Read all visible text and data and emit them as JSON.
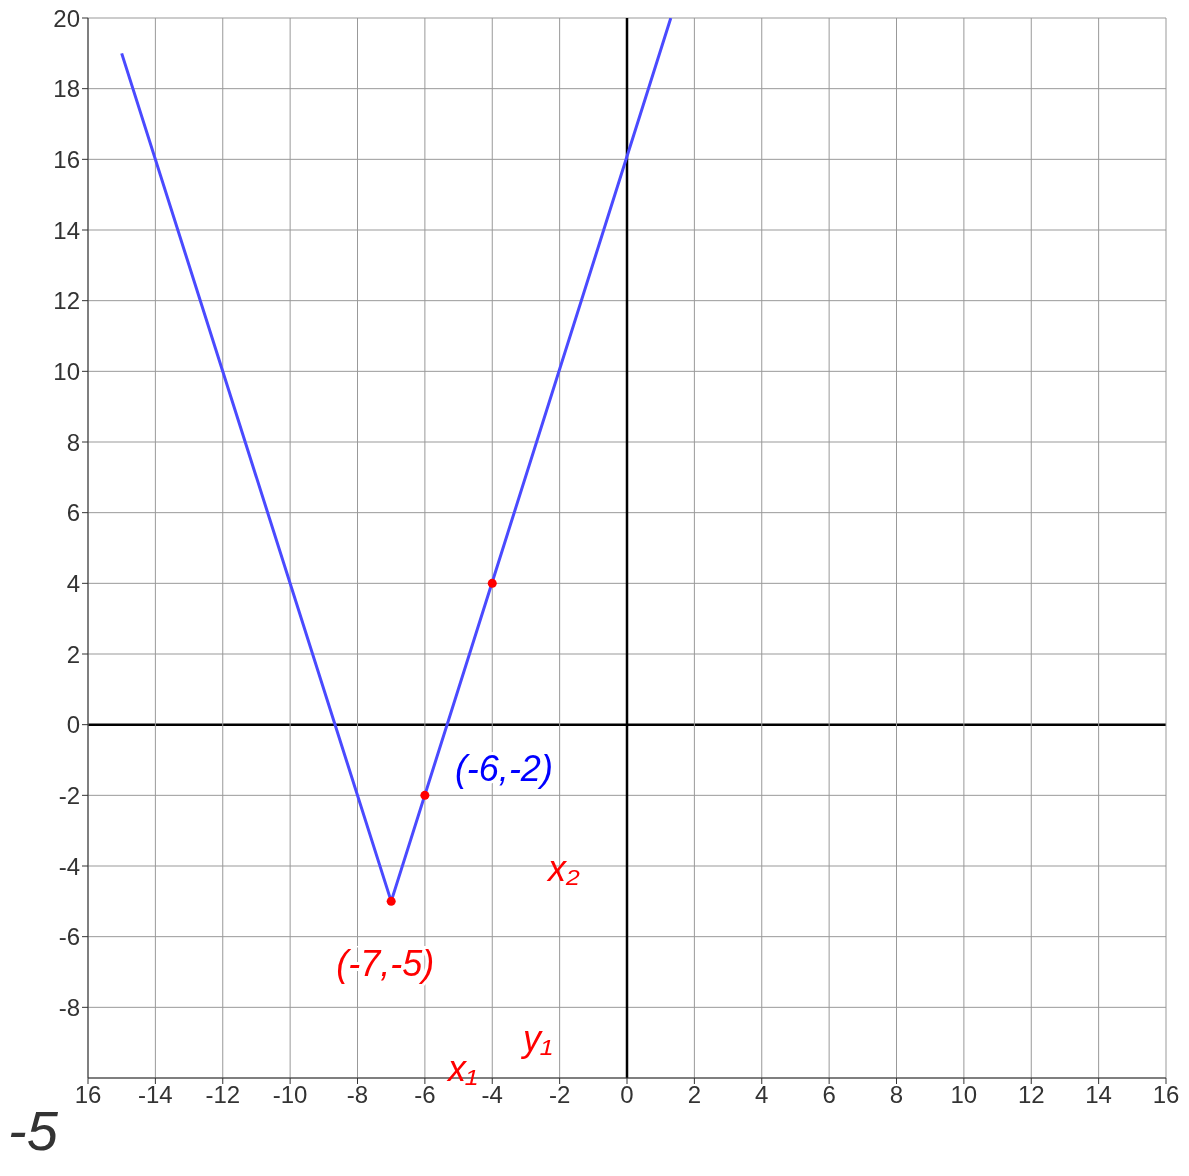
{
  "chart_data": {
    "type": "line",
    "xlim": [
      -16,
      16
    ],
    "ylim": [
      -10,
      20
    ],
    "xticks": [
      {
        "value": -16,
        "label": "16"
      },
      -14,
      -12,
      -10,
      -8,
      -6,
      -4,
      -2,
      0,
      2,
      4,
      6,
      8,
      10,
      12,
      14,
      16
    ],
    "yticks": [
      -8,
      -6,
      -4,
      -2,
      0,
      2,
      4,
      6,
      8,
      10,
      12,
      14,
      16,
      18,
      20
    ],
    "grid": true,
    "legend": false,
    "series": [
      {
        "type": "line",
        "color": "#4a4aff",
        "x": [
          -15,
          -7,
          1.3
        ],
        "values": [
          19,
          -5,
          20
        ],
        "marker": "none",
        "line_style": "solid"
      },
      {
        "type": "scatter",
        "color": "#ff0000",
        "x": [
          -7,
          -6,
          -4
        ],
        "values": [
          -5,
          -2,
          4
        ],
        "marker": "circle"
      }
    ],
    "annotations": [
      {
        "text": "(-6,-2)",
        "x": -6,
        "y": -2
      },
      {
        "text": "(-7,-5)",
        "x": -7,
        "y": -5
      },
      "x₂",
      "x₁",
      "y₁",
      "-5"
    ]
  }
}
